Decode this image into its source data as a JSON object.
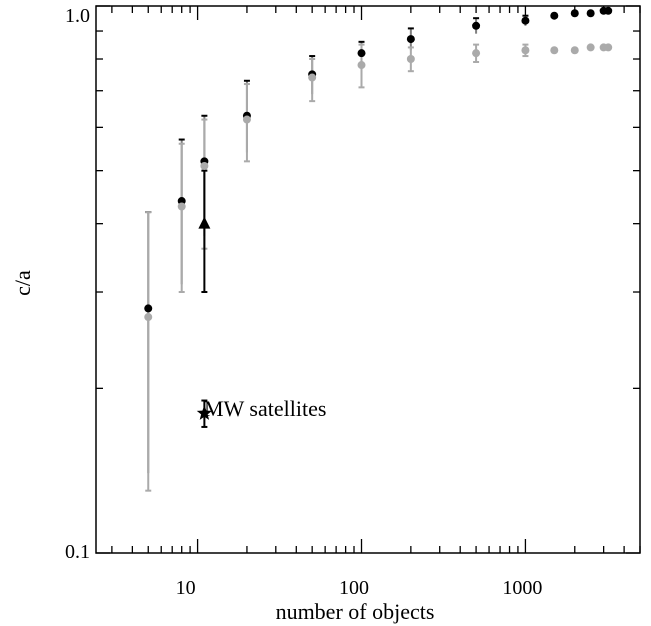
{
  "chart_data": {
    "type": "scatter",
    "title": "",
    "xlabel": "number of objects",
    "ylabel": "c/a",
    "xscale": "log",
    "yscale": "log",
    "xlim": [
      2.4,
      5000
    ],
    "ylim": [
      0.1,
      1.0
    ],
    "x_tick_labels": [
      "10",
      "100",
      "1000"
    ],
    "y_tick_labels": [
      "0.1",
      "1.0"
    ],
    "grid": false,
    "legend": "none",
    "colors": {
      "black_series": "#000000",
      "gray_series": "#aaaaaa",
      "gray_bars": "#808080"
    },
    "series": [
      {
        "marker": "circle",
        "color": "#000000",
        "points": [
          {
            "x": 5,
            "y": 0.28,
            "ylo": 0.14,
            "yhi": 0.42
          },
          {
            "x": 8,
            "y": 0.44,
            "ylo": 0.31,
            "yhi": 0.57
          },
          {
            "x": 11,
            "y": 0.52,
            "ylo": 0.38,
            "yhi": 0.63
          },
          {
            "x": 20,
            "y": 0.63,
            "ylo": 0.54,
            "yhi": 0.73
          },
          {
            "x": 50,
            "y": 0.75,
            "ylo": 0.69,
            "yhi": 0.81
          },
          {
            "x": 100,
            "y": 0.82,
            "ylo": 0.78,
            "yhi": 0.86
          },
          {
            "x": 200,
            "y": 0.87,
            "ylo": 0.83,
            "yhi": 0.91
          },
          {
            "x": 500,
            "y": 0.92,
            "ylo": 0.89,
            "yhi": 0.95
          },
          {
            "x": 1000,
            "y": 0.94,
            "ylo": 0.92,
            "yhi": 0.96
          },
          {
            "x": 1500,
            "y": 0.96
          },
          {
            "x": 2000,
            "y": 0.97
          },
          {
            "x": 2500,
            "y": 0.97
          },
          {
            "x": 3000,
            "y": 0.98
          },
          {
            "x": 3200,
            "y": 0.98
          }
        ]
      },
      {
        "marker": "circle",
        "color": "#aaaaaa",
        "points": [
          {
            "x": 5,
            "y": 0.27,
            "ylo": 0.13,
            "yhi": 0.42
          },
          {
            "x": 8,
            "y": 0.43,
            "ylo": 0.3,
            "yhi": 0.56
          },
          {
            "x": 11,
            "y": 0.51,
            "ylo": 0.36,
            "yhi": 0.62
          },
          {
            "x": 20,
            "y": 0.62,
            "ylo": 0.52,
            "yhi": 0.72
          },
          {
            "x": 50,
            "y": 0.74,
            "ylo": 0.67,
            "yhi": 0.8
          },
          {
            "x": 100,
            "y": 0.78,
            "ylo": 0.71,
            "yhi": 0.85
          },
          {
            "x": 200,
            "y": 0.8,
            "ylo": 0.76,
            "yhi": 0.84
          },
          {
            "x": 500,
            "y": 0.82,
            "ylo": 0.79,
            "yhi": 0.85
          },
          {
            "x": 1000,
            "y": 0.83,
            "ylo": 0.81,
            "yhi": 0.85
          },
          {
            "x": 1500,
            "y": 0.83
          },
          {
            "x": 2000,
            "y": 0.83
          },
          {
            "x": 2500,
            "y": 0.84
          },
          {
            "x": 3000,
            "y": 0.84
          },
          {
            "x": 3200,
            "y": 0.84
          }
        ]
      },
      {
        "marker": "triangle",
        "color": "#000000",
        "points": [
          {
            "x": 11,
            "y": 0.4,
            "ylo": 0.3,
            "yhi": 0.5
          }
        ]
      },
      {
        "marker": "star",
        "color": "#000000",
        "points": [
          {
            "x": 11,
            "y": 0.18,
            "ylo": 0.17,
            "yhi": 0.19
          }
        ]
      }
    ],
    "annotations": [
      {
        "text": "MW satellites",
        "x": 11,
        "y": 0.18
      }
    ]
  }
}
